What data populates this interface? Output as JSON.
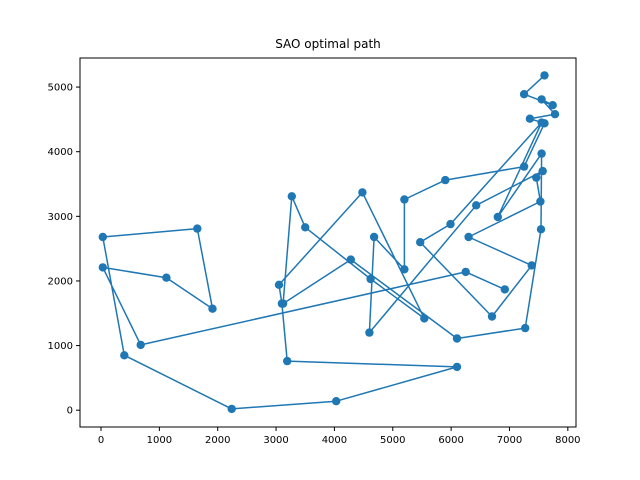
{
  "chart_data": {
    "type": "line",
    "title": "SAO optimal path",
    "xlabel": "",
    "ylabel": "",
    "xlim": [
      -360,
      8140
    ],
    "ylim": [
      -260,
      5450
    ],
    "x_ticks": [
      0,
      1000,
      2000,
      3000,
      4000,
      5000,
      6000,
      7000,
      8000
    ],
    "y_ticks": [
      0,
      1000,
      2000,
      3000,
      4000,
      5000
    ],
    "grid": false,
    "series": [
      {
        "color": "#1f77b4",
        "marker": "circle",
        "points": [
          [
            7600,
            5180
          ],
          [
            7250,
            4890
          ],
          [
            7740,
            4720
          ],
          [
            7550,
            4810
          ],
          [
            7780,
            4580
          ],
          [
            7350,
            4510
          ],
          [
            7600,
            4440
          ],
          [
            7250,
            3770
          ],
          [
            5900,
            3560
          ],
          [
            5200,
            3260
          ],
          [
            5200,
            2180
          ],
          [
            4680,
            2680
          ],
          [
            4600,
            1200
          ],
          [
            6430,
            3170
          ],
          [
            7570,
            3700
          ],
          [
            7460,
            3600
          ],
          [
            7530,
            3230
          ],
          [
            6300,
            2680
          ],
          [
            7380,
            2240
          ],
          [
            6700,
            1450
          ],
          [
            5470,
            2600
          ],
          [
            5990,
            2880
          ],
          [
            7550,
            4450
          ],
          [
            6800,
            2990
          ],
          [
            7550,
            3970
          ],
          [
            7540,
            2800
          ],
          [
            7270,
            1270
          ],
          [
            6100,
            1110
          ],
          [
            4280,
            2330
          ],
          [
            3120,
            1650
          ],
          [
            3270,
            3310
          ],
          [
            3500,
            2830
          ],
          [
            4620,
            2030
          ],
          [
            5540,
            1420
          ],
          [
            4480,
            3370
          ],
          [
            3050,
            1940
          ],
          [
            3100,
            1650
          ],
          [
            3190,
            760
          ],
          [
            6100,
            670
          ],
          [
            4030,
            140
          ],
          [
            2240,
            20
          ],
          [
            400,
            850
          ],
          [
            30,
            2680
          ],
          [
            1650,
            2810
          ],
          [
            1910,
            1570
          ],
          [
            1120,
            2050
          ],
          [
            30,
            2210
          ],
          [
            680,
            1010
          ],
          [
            6250,
            2140
          ],
          [
            6920,
            1870
          ]
        ]
      }
    ]
  }
}
